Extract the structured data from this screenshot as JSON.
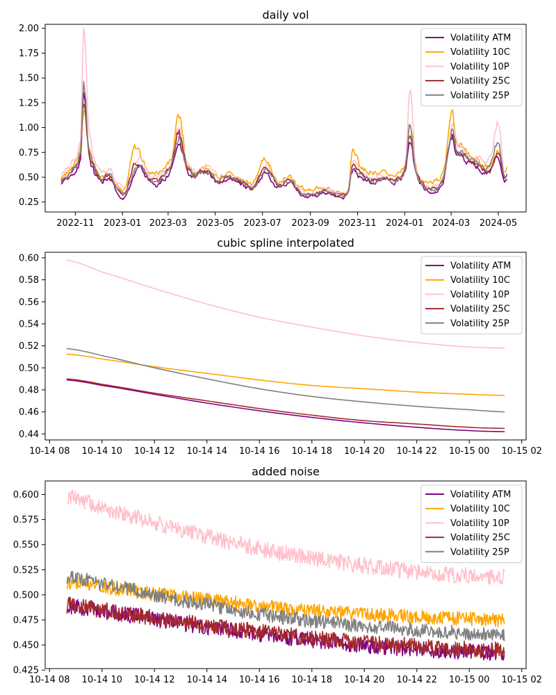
{
  "colors": {
    "Volatility ATM": "#800080",
    "Volatility 10C": "#ffa500",
    "Volatility 10P": "#ffc0cb",
    "Volatility 25C": "#a52a2a",
    "Volatility 25P": "#808080"
  },
  "chart_data": [
    {
      "type": "line",
      "title": "daily vol",
      "xlabel": "",
      "ylabel": "",
      "x_kind": "date",
      "xlim": [
        "2022-09-23",
        "2024-06-06"
      ],
      "ylim": [
        0.15,
        2.04
      ],
      "xticks": [
        {
          "value": "2022-11-01",
          "label": "2022-11"
        },
        {
          "value": "2023-01-01",
          "label": "2023-01"
        },
        {
          "value": "2023-03-01",
          "label": "2023-03"
        },
        {
          "value": "2023-05-01",
          "label": "2023-05"
        },
        {
          "value": "2023-07-01",
          "label": "2023-07"
        },
        {
          "value": "2023-09-01",
          "label": "2023-09"
        },
        {
          "value": "2023-11-01",
          "label": "2023-11"
        },
        {
          "value": "2024-01-01",
          "label": "2024-01"
        },
        {
          "value": "2024-03-01",
          "label": "2024-03"
        },
        {
          "value": "2024-05-01",
          "label": "2024-05"
        }
      ],
      "yticks": [
        {
          "value": 0.25,
          "label": "0.25"
        },
        {
          "value": 0.5,
          "label": "0.50"
        },
        {
          "value": 0.75,
          "label": "0.75"
        },
        {
          "value": 1.0,
          "label": "1.00"
        },
        {
          "value": 1.25,
          "label": "1.25"
        },
        {
          "value": 1.5,
          "label": "1.50"
        },
        {
          "value": 1.75,
          "label": "1.75"
        },
        {
          "value": 2.0,
          "label": "2.00"
        }
      ],
      "grid": false,
      "legend": "upper right",
      "x": [
        "2022-10-14",
        "2022-10-28",
        "2022-11-08",
        "2022-11-12",
        "2022-11-18",
        "2022-11-25",
        "2022-12-05",
        "2022-12-15",
        "2022-12-25",
        "2023-01-05",
        "2023-01-15",
        "2023-01-25",
        "2023-02-05",
        "2023-02-15",
        "2023-02-25",
        "2023-03-06",
        "2023-03-15",
        "2023-03-25",
        "2023-04-05",
        "2023-04-20",
        "2023-05-05",
        "2023-05-20",
        "2023-06-05",
        "2023-06-20",
        "2023-07-05",
        "2023-07-20",
        "2023-08-05",
        "2023-08-20",
        "2023-09-05",
        "2023-09-20",
        "2023-10-05",
        "2023-10-20",
        "2023-10-25",
        "2023-11-05",
        "2023-11-20",
        "2023-12-05",
        "2023-12-20",
        "2024-01-02",
        "2024-01-08",
        "2024-01-15",
        "2024-01-25",
        "2024-02-05",
        "2024-02-20",
        "2024-03-02",
        "2024-03-08",
        "2024-03-15",
        "2024-03-25",
        "2024-04-05",
        "2024-04-20",
        "2024-05-01",
        "2024-05-08",
        "2024-05-12"
      ],
      "series": [
        {
          "name": "Volatility ATM",
          "values": [
            0.45,
            0.52,
            0.7,
            1.4,
            0.75,
            0.55,
            0.45,
            0.5,
            0.35,
            0.3,
            0.5,
            0.6,
            0.45,
            0.42,
            0.5,
            0.58,
            0.85,
            0.58,
            0.5,
            0.55,
            0.45,
            0.48,
            0.42,
            0.38,
            0.55,
            0.4,
            0.45,
            0.32,
            0.3,
            0.34,
            0.3,
            0.33,
            0.55,
            0.5,
            0.45,
            0.48,
            0.45,
            0.55,
            0.85,
            0.55,
            0.4,
            0.35,
            0.45,
            0.9,
            0.75,
            0.7,
            0.65,
            0.6,
            0.55,
            0.7,
            0.5,
            0.48
          ]
        },
        {
          "name": "Volatility 10C",
          "values": [
            0.5,
            0.6,
            0.8,
            1.2,
            0.82,
            0.62,
            0.5,
            0.55,
            0.42,
            0.38,
            0.8,
            0.7,
            0.55,
            0.55,
            0.6,
            0.7,
            1.1,
            0.65,
            0.55,
            0.6,
            0.5,
            0.55,
            0.48,
            0.45,
            0.7,
            0.45,
            0.5,
            0.4,
            0.38,
            0.4,
            0.35,
            0.38,
            0.8,
            0.6,
            0.55,
            0.55,
            0.5,
            0.65,
            1.05,
            0.6,
            0.45,
            0.45,
            0.55,
            1.1,
            0.85,
            0.8,
            0.7,
            0.65,
            0.6,
            0.75,
            0.55,
            0.6
          ]
        },
        {
          "name": "Volatility 10P",
          "values": [
            0.55,
            0.65,
            0.9,
            1.95,
            1.0,
            0.7,
            0.55,
            0.6,
            0.45,
            0.4,
            0.6,
            0.68,
            0.5,
            0.5,
            0.58,
            0.68,
            1.0,
            0.7,
            0.55,
            0.62,
            0.5,
            0.52,
            0.46,
            0.42,
            0.6,
            0.44,
            0.5,
            0.36,
            0.34,
            0.38,
            0.34,
            0.36,
            0.65,
            0.55,
            0.5,
            0.52,
            0.48,
            0.6,
            1.4,
            0.6,
            0.45,
            0.4,
            0.5,
            1.0,
            0.85,
            0.8,
            0.7,
            0.7,
            0.7,
            1.05,
            0.55,
            0.55
          ]
        },
        {
          "name": "Volatility 25C",
          "values": [
            0.47,
            0.55,
            0.72,
            1.25,
            0.78,
            0.58,
            0.46,
            0.52,
            0.38,
            0.33,
            0.6,
            0.62,
            0.48,
            0.46,
            0.54,
            0.62,
            0.95,
            0.6,
            0.52,
            0.56,
            0.46,
            0.5,
            0.44,
            0.4,
            0.6,
            0.42,
            0.47,
            0.34,
            0.32,
            0.36,
            0.32,
            0.35,
            0.62,
            0.53,
            0.48,
            0.5,
            0.46,
            0.58,
            0.95,
            0.56,
            0.42,
            0.38,
            0.48,
            0.95,
            0.78,
            0.74,
            0.66,
            0.62,
            0.56,
            0.72,
            0.52,
            0.5
          ]
        },
        {
          "name": "Volatility 25P",
          "values": [
            0.49,
            0.56,
            0.75,
            1.44,
            0.8,
            0.6,
            0.48,
            0.53,
            0.4,
            0.35,
            0.55,
            0.62,
            0.48,
            0.46,
            0.54,
            0.63,
            0.9,
            0.62,
            0.52,
            0.57,
            0.47,
            0.5,
            0.44,
            0.4,
            0.57,
            0.42,
            0.47,
            0.34,
            0.32,
            0.36,
            0.32,
            0.34,
            0.6,
            0.52,
            0.47,
            0.5,
            0.46,
            0.57,
            1.05,
            0.57,
            0.42,
            0.38,
            0.48,
            0.98,
            0.78,
            0.74,
            0.67,
            0.63,
            0.6,
            0.86,
            0.52,
            0.52
          ]
        }
      ]
    },
    {
      "type": "line",
      "title": "cubic spline interpolated",
      "xlabel": "",
      "ylabel": "",
      "x_kind": "datetime",
      "xlim": [
        "2022-10-14T07:50",
        "2022-10-15T02:10"
      ],
      "ylim": [
        0.4345,
        0.605
      ],
      "xticks": [
        {
          "value": "2022-10-14T08:00",
          "label": "10-14 08"
        },
        {
          "value": "2022-10-14T10:00",
          "label": "10-14 10"
        },
        {
          "value": "2022-10-14T12:00",
          "label": "10-14 12"
        },
        {
          "value": "2022-10-14T14:00",
          "label": "10-14 14"
        },
        {
          "value": "2022-10-14T16:00",
          "label": "10-14 16"
        },
        {
          "value": "2022-10-14T18:00",
          "label": "10-14 18"
        },
        {
          "value": "2022-10-14T20:00",
          "label": "10-14 20"
        },
        {
          "value": "2022-10-14T22:00",
          "label": "10-14 22"
        },
        {
          "value": "2022-10-15T00:00",
          "label": "10-15 00"
        },
        {
          "value": "2022-10-15T02:00",
          "label": "10-15 02"
        }
      ],
      "yticks": [
        {
          "value": 0.44,
          "label": "0.44"
        },
        {
          "value": 0.46,
          "label": "0.46"
        },
        {
          "value": 0.48,
          "label": "0.48"
        },
        {
          "value": 0.5,
          "label": "0.50"
        },
        {
          "value": 0.52,
          "label": "0.52"
        },
        {
          "value": 0.54,
          "label": "0.54"
        },
        {
          "value": 0.56,
          "label": "0.56"
        },
        {
          "value": 0.58,
          "label": "0.58"
        },
        {
          "value": 0.6,
          "label": "0.60"
        }
      ],
      "grid": false,
      "legend": "upper right",
      "x": [
        "2022-10-14T08:40",
        "2022-10-14T10:00",
        "2022-10-14T12:00",
        "2022-10-14T14:00",
        "2022-10-14T16:00",
        "2022-10-14T18:00",
        "2022-10-14T20:00",
        "2022-10-14T22:00",
        "2022-10-15T00:00",
        "2022-10-15T01:20"
      ],
      "series": [
        {
          "name": "Volatility ATM",
          "values": [
            0.489,
            0.484,
            0.476,
            0.468,
            0.461,
            0.455,
            0.45,
            0.446,
            0.443,
            0.442
          ]
        },
        {
          "name": "Volatility 10C",
          "values": [
            0.5125,
            0.508,
            0.501,
            0.495,
            0.489,
            0.484,
            0.481,
            0.478,
            0.476,
            0.475
          ]
        },
        {
          "name": "Volatility 10P",
          "values": [
            0.598,
            0.587,
            0.572,
            0.558,
            0.546,
            0.537,
            0.529,
            0.523,
            0.519,
            0.518
          ]
        },
        {
          "name": "Volatility 25C",
          "values": [
            0.49,
            0.485,
            0.477,
            0.47,
            0.463,
            0.457,
            0.452,
            0.449,
            0.446,
            0.445
          ]
        },
        {
          "name": "Volatility 25P",
          "values": [
            0.5175,
            0.511,
            0.5,
            0.49,
            0.481,
            0.474,
            0.469,
            0.465,
            0.462,
            0.46
          ]
        }
      ]
    },
    {
      "type": "line",
      "title": "added noise",
      "xlabel": "",
      "ylabel": "",
      "x_kind": "datetime",
      "xlim": [
        "2022-10-14T07:50",
        "2022-10-15T02:10"
      ],
      "ylim": [
        0.4265,
        0.6135
      ],
      "xticks": [
        {
          "value": "2022-10-14T08:00",
          "label": "10-14 08"
        },
        {
          "value": "2022-10-14T10:00",
          "label": "10-14 10"
        },
        {
          "value": "2022-10-14T12:00",
          "label": "10-14 12"
        },
        {
          "value": "2022-10-14T14:00",
          "label": "10-14 14"
        },
        {
          "value": "2022-10-14T16:00",
          "label": "10-14 16"
        },
        {
          "value": "2022-10-14T18:00",
          "label": "10-14 18"
        },
        {
          "value": "2022-10-14T20:00",
          "label": "10-14 20"
        },
        {
          "value": "2022-10-14T22:00",
          "label": "10-14 22"
        },
        {
          "value": "2022-10-15T00:00",
          "label": "10-15 00"
        },
        {
          "value": "2022-10-15T02:00",
          "label": "10-15 02"
        }
      ],
      "yticks": [
        {
          "value": 0.425,
          "label": "0.425"
        },
        {
          "value": 0.45,
          "label": "0.450"
        },
        {
          "value": 0.475,
          "label": "0.475"
        },
        {
          "value": 0.5,
          "label": "0.500"
        },
        {
          "value": 0.525,
          "label": "0.525"
        },
        {
          "value": 0.55,
          "label": "0.550"
        },
        {
          "value": 0.575,
          "label": "0.575"
        },
        {
          "value": 0.6,
          "label": "0.600"
        }
      ],
      "grid": false,
      "legend": "upper right",
      "x": [
        "2022-10-14T08:40",
        "2022-10-14T10:00",
        "2022-10-14T12:00",
        "2022-10-14T14:00",
        "2022-10-14T16:00",
        "2022-10-14T18:00",
        "2022-10-14T20:00",
        "2022-10-14T22:00",
        "2022-10-15T00:00",
        "2022-10-15T01:20"
      ],
      "noise_amplitude": [
        {
          "name": "Volatility ATM",
          "value": 0.008
        },
        {
          "name": "Volatility 10C",
          "value": 0.007
        },
        {
          "name": "Volatility 10P",
          "value": 0.008
        },
        {
          "name": "Volatility 25C",
          "value": 0.008
        },
        {
          "name": "Volatility 25P",
          "value": 0.007
        }
      ],
      "series": [
        {
          "name": "Volatility ATM",
          "values": [
            0.489,
            0.484,
            0.476,
            0.468,
            0.461,
            0.455,
            0.45,
            0.446,
            0.443,
            0.442
          ]
        },
        {
          "name": "Volatility 10C",
          "values": [
            0.5125,
            0.508,
            0.501,
            0.495,
            0.489,
            0.484,
            0.481,
            0.478,
            0.476,
            0.475
          ]
        },
        {
          "name": "Volatility 10P",
          "values": [
            0.598,
            0.587,
            0.572,
            0.558,
            0.546,
            0.537,
            0.529,
            0.523,
            0.519,
            0.518
          ]
        },
        {
          "name": "Volatility 25C",
          "values": [
            0.49,
            0.485,
            0.477,
            0.47,
            0.463,
            0.457,
            0.452,
            0.449,
            0.446,
            0.445
          ]
        },
        {
          "name": "Volatility 25P",
          "values": [
            0.5175,
            0.511,
            0.5,
            0.49,
            0.481,
            0.474,
            0.469,
            0.465,
            0.462,
            0.46
          ]
        }
      ]
    }
  ]
}
